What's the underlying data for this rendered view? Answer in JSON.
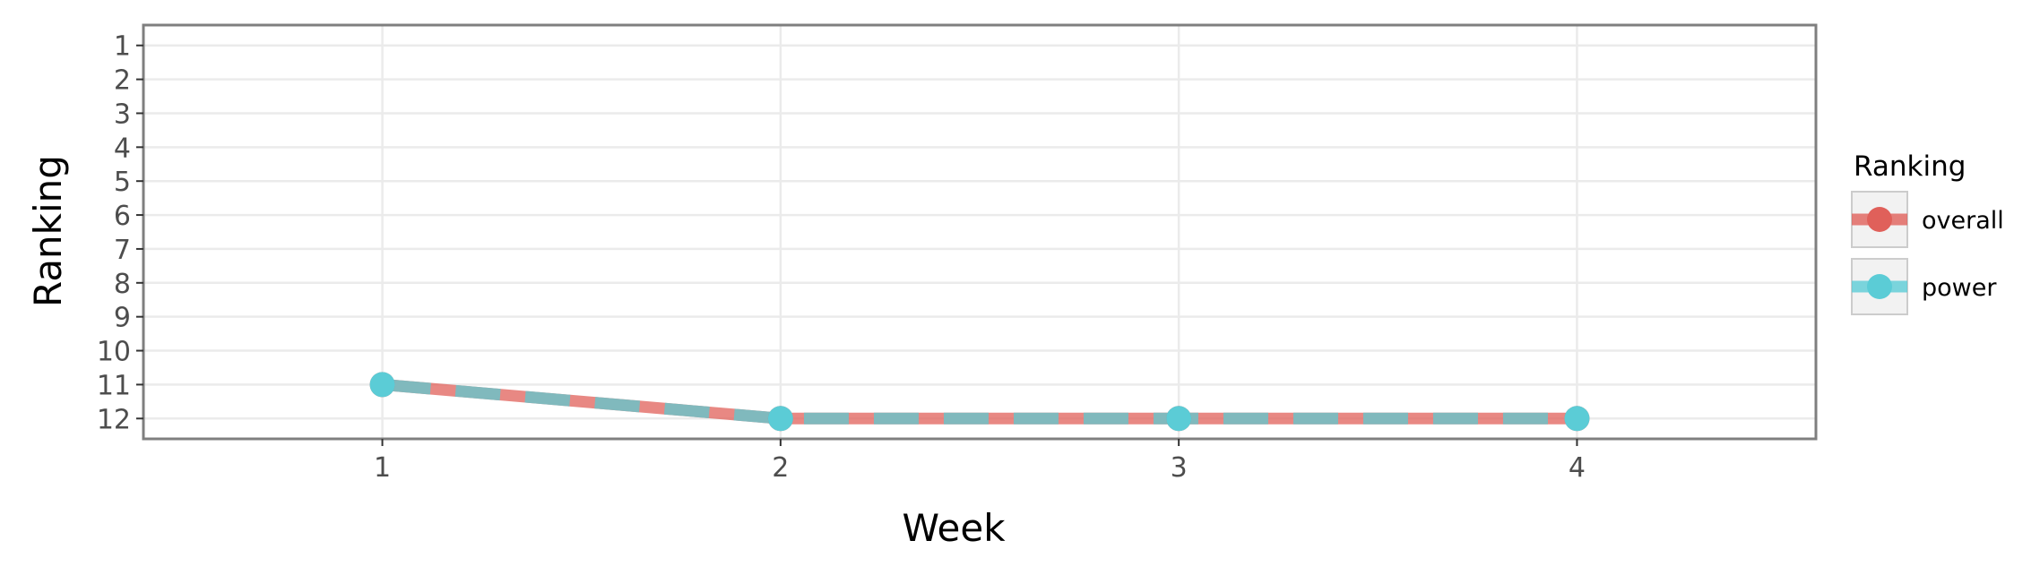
{
  "chart_data": {
    "type": "line",
    "title": "",
    "xlabel": "Week",
    "ylabel": "Ranking",
    "x": [
      1,
      2,
      3,
      4
    ],
    "xlim": [
      0.4,
      4.6
    ],
    "ylim": [
      0.4,
      12.6
    ],
    "y_reversed": true,
    "x_ticks": [
      "1",
      "2",
      "3",
      "4"
    ],
    "y_ticks": [
      "1",
      "2",
      "3",
      "4",
      "5",
      "6",
      "7",
      "8",
      "9",
      "10",
      "11",
      "12"
    ],
    "grid": true,
    "legend_title": "Ranking",
    "legend_position": "right",
    "series": [
      {
        "name": "overall",
        "values": [
          11,
          12,
          12,
          12
        ],
        "color": "#e0605a",
        "style": "solid"
      },
      {
        "name": "power",
        "values": [
          11,
          12,
          12,
          12
        ],
        "color": "#5bccd6",
        "style": "dashed"
      }
    ]
  },
  "colors": {
    "panel_border": "#7f7f7f",
    "grid": "#ebebeb",
    "overlap_line": "#80b9bd",
    "legend_key_bg": "#f2f2f2",
    "legend_key_border": "#cccccc"
  }
}
